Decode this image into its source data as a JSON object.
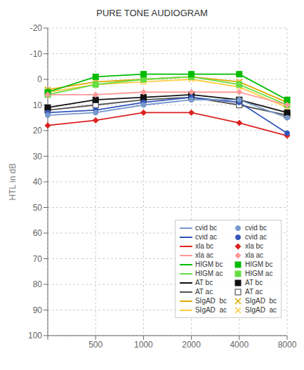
{
  "chart_data": {
    "type": "line",
    "title": "PURE TONE AUDIOGRAM",
    "y_label": "HTL in dB",
    "categories": [
      null,
      "500",
      "1000",
      "2000",
      "4000",
      "8000"
    ],
    "ylim": [
      -20,
      100
    ],
    "yticks": [
      -20,
      -10,
      0,
      10,
      20,
      30,
      40,
      50,
      60,
      70,
      80,
      90,
      100
    ],
    "grid": true,
    "legend": "lower right",
    "series": [
      {
        "name": "cvid bc",
        "color": "#7799cc",
        "marker": "circle",
        "values": [
          14,
          13,
          10,
          8,
          8,
          15
        ]
      },
      {
        "name": "cvid ac",
        "color": "#3355bb",
        "marker": "circle",
        "values": [
          13,
          12,
          9,
          7,
          9,
          21
        ]
      },
      {
        "name": "xla bc",
        "color": "#dd2222",
        "marker": "diamond",
        "values": [
          18,
          16,
          13,
          13,
          17,
          22
        ]
      },
      {
        "name": "xla ac",
        "color": "#ff9999",
        "marker": "diamond",
        "values": [
          6,
          6,
          5,
          5,
          5,
          10
        ]
      },
      {
        "name": "HIGM bc",
        "color": "#00bb00",
        "marker": "square",
        "values": [
          5,
          -1,
          -2,
          -2,
          -2,
          8
        ]
      },
      {
        "name": "HIGM ac",
        "color": "#66dd44",
        "marker": "square",
        "values": [
          6,
          2,
          0,
          -1,
          2,
          10
        ]
      },
      {
        "name": "AT bc",
        "color": "#111111",
        "marker": "square",
        "values": [
          11,
          8,
          7,
          6,
          8,
          13
        ]
      },
      {
        "name": "AT ac",
        "color": "#555555",
        "marker": "open_square",
        "values": [
          12,
          10,
          8,
          7,
          10,
          14
        ]
      },
      {
        "name": "SIgAD  bc",
        "color": "#ddaa00",
        "marker": "x",
        "values": [
          4,
          1,
          0,
          -1,
          1,
          9
        ]
      },
      {
        "name": "SIgAD  ac",
        "color": "#ffcc44",
        "marker": "x",
        "values": [
          5,
          2,
          1,
          0,
          3,
          11
        ]
      }
    ]
  }
}
